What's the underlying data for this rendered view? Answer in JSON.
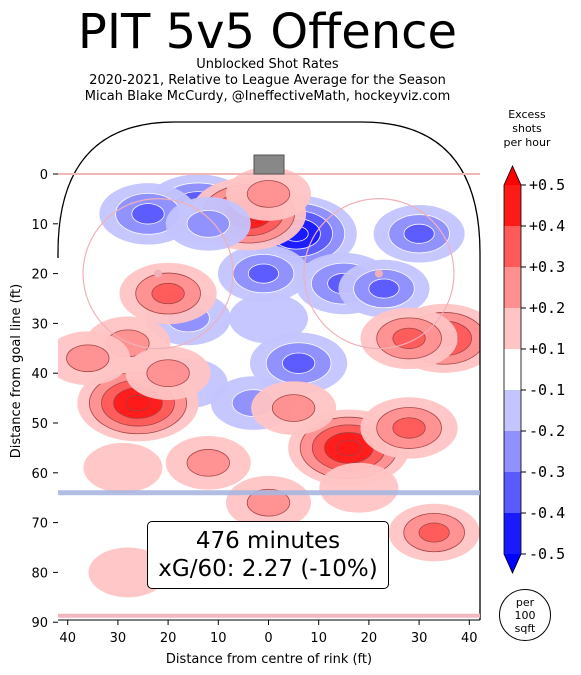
{
  "header": {
    "title": "PIT 5v5 Offence",
    "subtitle_1": "Unblocked Shot Rates",
    "subtitle_2": "2020-2021, Relative to League Average for the Season",
    "subtitle_3": "Micah Blake McCurdy, @IneffectiveMath, hockeyviz.com"
  },
  "info": {
    "minutes": "476 minutes",
    "xg": "xG/60: 2.27 (-10%)"
  },
  "colorbar": {
    "title_lines": [
      "Excess",
      "shots",
      "per hour"
    ],
    "ticks": [
      "+0.5",
      "+0.4",
      "+0.3",
      "+0.2",
      "+0.1",
      "-0.1",
      "-0.2",
      "-0.3",
      "-0.4",
      "-0.5"
    ],
    "colors": [
      "#ff1a1a",
      "#ff5a5a",
      "#ff9090",
      "#ffc4c4",
      "#ffffff",
      "#c4c4ff",
      "#9090ff",
      "#5a5aff",
      "#1a1aff"
    ],
    "top_arrow_color": "#ff0000",
    "bottom_arrow_color": "#0000ff"
  },
  "unit_badge": [
    "per",
    "100",
    "sqft"
  ],
  "chart_data": {
    "type": "heatmap",
    "xlabel": "Distance from centre of rink (ft)",
    "ylabel": "Distance from goal line (ft)",
    "xlim": [
      -42.5,
      42.5
    ],
    "ylim": [
      -11,
      90
    ],
    "x_ticks": [
      "40",
      "30",
      "20",
      "10",
      "0",
      "10",
      "20",
      "30",
      "40"
    ],
    "y_ticks": [
      "0",
      "10",
      "20",
      "30",
      "40",
      "50",
      "60",
      "70",
      "80",
      "90"
    ],
    "value_range": [
      -0.5,
      0.5
    ],
    "blobs": [
      {
        "x": 5.5,
        "y": 12,
        "v": -0.5
      },
      {
        "x": 15,
        "y": 22,
        "v": -0.3
      },
      {
        "x": 23,
        "y": 23,
        "v": -0.25
      },
      {
        "x": -1,
        "y": 20,
        "v": -0.25
      },
      {
        "x": 30,
        "y": 12,
        "v": -0.25
      },
      {
        "x": -14,
        "y": 7,
        "v": -0.4
      },
      {
        "x": -24,
        "y": 8,
        "v": -0.3
      },
      {
        "x": 6,
        "y": 38,
        "v": -0.3
      },
      {
        "x": -3,
        "y": 46,
        "v": -0.2
      },
      {
        "x": -16,
        "y": 29,
        "v": -0.2
      },
      {
        "x": -16,
        "y": 42,
        "v": -0.15
      },
      {
        "x": -4,
        "y": 8,
        "v": 0.45
      },
      {
        "x": 0,
        "y": 4,
        "v": 0.2
      },
      {
        "x": -20,
        "y": 24,
        "v": 0.3
      },
      {
        "x": -28,
        "y": 34,
        "v": 0.2
      },
      {
        "x": 35,
        "y": 33,
        "v": 0.4
      },
      {
        "x": 28,
        "y": 33,
        "v": 0.3
      },
      {
        "x": 16,
        "y": 55,
        "v": 0.5
      },
      {
        "x": 28,
        "y": 51,
        "v": 0.3
      },
      {
        "x": 5,
        "y": 47,
        "v": 0.2
      },
      {
        "x": -26,
        "y": 46,
        "v": 0.5
      },
      {
        "x": -20,
        "y": 40,
        "v": 0.2
      },
      {
        "x": -12,
        "y": 58,
        "v": 0.2
      },
      {
        "x": 33,
        "y": 72,
        "v": 0.25
      },
      {
        "x": 0,
        "y": 66,
        "v": 0.2
      },
      {
        "x": -29,
        "y": 59,
        "v": 0.15
      },
      {
        "x": -36,
        "y": 37,
        "v": 0.2
      },
      {
        "x": -12,
        "y": 10,
        "v": -0.2
      },
      {
        "x": 0,
        "y": 29,
        "v": -0.15
      },
      {
        "x": 18,
        "y": 63,
        "v": 0.15
      },
      {
        "x": -28,
        "y": 80,
        "v": 0.15
      }
    ]
  }
}
